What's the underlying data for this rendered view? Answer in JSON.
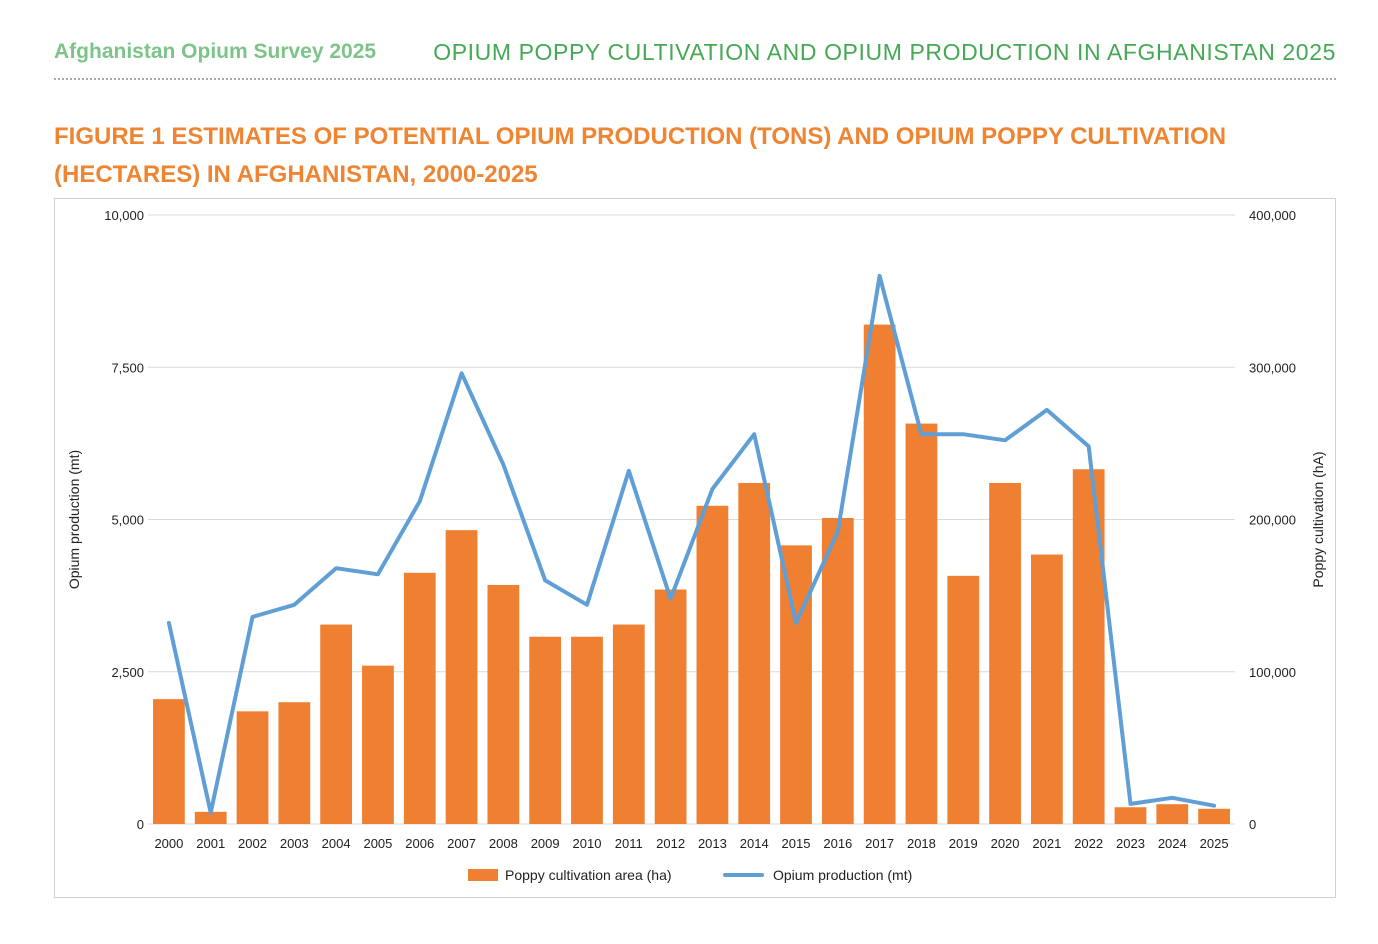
{
  "header": {
    "survey_title": "Afghanistan Opium Survey 2025",
    "section_title": "OPIUM POPPY CULTIVATION AND OPIUM PRODUCTION IN AFGHANISTAN 2025"
  },
  "figure": {
    "title": "FIGURE 1 ESTIMATES OF POTENTIAL OPIUM PRODUCTION (TONS) AND OPIUM POPPY CULTIVATION (HECTARES) IN AFGHANISTAN, 2000-2025"
  },
  "colors": {
    "bar": "#ef7f31",
    "line": "#5f9fd5",
    "grid": "#d9d9d9"
  },
  "chart_data": {
    "type": "bar",
    "categories": [
      "2000",
      "2001",
      "2002",
      "2003",
      "2004",
      "2005",
      "2006",
      "2007",
      "2008",
      "2009",
      "2010",
      "2011",
      "2012",
      "2013",
      "2014",
      "2015",
      "2016",
      "2017",
      "2018",
      "2019",
      "2020",
      "2021",
      "2022",
      "2023",
      "2024",
      "2025"
    ],
    "series": [
      {
        "name": "Poppy cultivation area (ha)",
        "type": "bar",
        "axis": "right",
        "values": [
          82000,
          8000,
          74000,
          80000,
          131000,
          104000,
          165000,
          193000,
          157000,
          123000,
          123000,
          131000,
          154000,
          209000,
          224000,
          183000,
          201000,
          328000,
          263000,
          163000,
          224000,
          177000,
          233000,
          11000,
          13000,
          10000
        ]
      },
      {
        "name": "Opium production (mt)",
        "type": "line",
        "axis": "left",
        "values": [
          3300,
          185,
          3400,
          3600,
          4200,
          4100,
          5300,
          7400,
          5900,
          4000,
          3600,
          5800,
          3700,
          5500,
          6400,
          3300,
          4800,
          9000,
          6400,
          6400,
          6300,
          6800,
          6200,
          330,
          430,
          300
        ]
      }
    ],
    "ylabel": "Opium production (mt)",
    "ylabel_right": "Poppy cultivation (hA)",
    "ylim": [
      0,
      10000
    ],
    "ylim_right": [
      0,
      400000
    ],
    "yticks": [
      "0",
      "2,500",
      "5,000",
      "7,500",
      "10,000"
    ],
    "yticks_right": [
      "0",
      "100,000",
      "200,000",
      "300,000",
      "400,000"
    ],
    "grid": true,
    "legend_position": "bottom-center"
  }
}
